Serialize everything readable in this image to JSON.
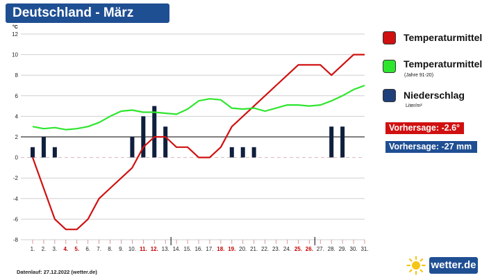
{
  "header": {
    "title": "Deutschland - März"
  },
  "chart_data": {
    "type": "line+bar",
    "unit_label": "°C",
    "ylim": [
      -8,
      12
    ],
    "yticks": [
      12,
      10,
      8,
      6,
      4,
      2,
      0,
      -2,
      -4,
      -6,
      -8
    ],
    "x_labels": [
      "1.",
      "2.",
      "3.",
      "4.",
      "5.",
      "6.",
      "7.",
      "8.",
      "9.",
      "10.",
      "11.",
      "12.",
      "13.",
      "14.",
      "15.",
      "16.",
      "17.",
      "18.",
      "19.",
      "20.",
      "21.",
      "22.",
      "23.",
      "24.",
      "25.",
      "26.",
      "27.",
      "28.",
      "29.",
      "30.",
      "31."
    ],
    "weekend_days": [
      4,
      5,
      11,
      12,
      18,
      19,
      25,
      26
    ],
    "series": [
      {
        "name": "Temperaturmittel",
        "color": "#d01010",
        "kind": "line",
        "values": [
          0,
          -3,
          -6,
          -7,
          -7,
          -6,
          -4,
          -3,
          -2,
          -1,
          1,
          2,
          2,
          1,
          1,
          0,
          0,
          1,
          3,
          4,
          5,
          6,
          7,
          8,
          9,
          9,
          9,
          8,
          9,
          10,
          10
        ]
      },
      {
        "name": "Temperaturmittel (Jahre 91-20)",
        "color": "#2ee52e",
        "kind": "line",
        "values": [
          3.0,
          2.8,
          2.9,
          2.7,
          2.8,
          3.0,
          3.4,
          4.0,
          4.5,
          4.6,
          4.4,
          4.4,
          4.3,
          4.2,
          4.7,
          5.5,
          5.7,
          5.6,
          4.8,
          4.7,
          4.8,
          4.5,
          4.8,
          5.1,
          5.1,
          5.0,
          5.1,
          5.5,
          6.0,
          6.6,
          7.0
        ]
      },
      {
        "name": "Niederschlag Liter/m²",
        "color": "#0f1f3d",
        "kind": "bar",
        "values": [
          1,
          2,
          1,
          0,
          0,
          0,
          0,
          0,
          0,
          2,
          4,
          5,
          3,
          0,
          0,
          0,
          0,
          0,
          1,
          1,
          1,
          0,
          0,
          0,
          0,
          0,
          0,
          3,
          3,
          0,
          0
        ]
      }
    ]
  },
  "legend": {
    "items": [
      {
        "label": "Temperaturmittel",
        "sub": "",
        "color": "#d01010"
      },
      {
        "label": "Temperaturmittel",
        "sub": "(Jahre 91-20)",
        "color": "#2ee52e"
      },
      {
        "label": "Niederschlag",
        "sub": "Liter/m²",
        "color": "#1f3f7a"
      }
    ]
  },
  "forecast": {
    "temp": {
      "text": "Vorhersage: -2.6°",
      "color": "#d01010"
    },
    "rain": {
      "text": "Vorhersage: -27 mm",
      "color": "#1f4f93"
    }
  },
  "footer": {
    "text": "Datenlauf: 27.12.2022 (wetter.de)"
  },
  "logo": {
    "text": "wetter.de"
  }
}
